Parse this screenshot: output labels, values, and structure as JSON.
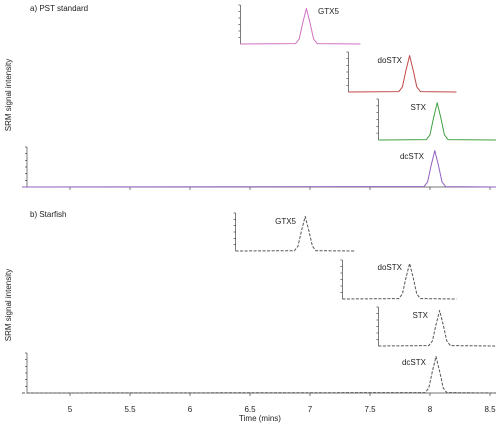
{
  "chart_data": [
    {
      "type": "line",
      "title": "a) PST standard",
      "y_label": "SRM signal intensity",
      "xlim": [
        4.6,
        8.55
      ],
      "xticks": [
        5,
        5.5,
        6,
        6.5,
        7,
        7.5,
        8,
        8.5
      ],
      "ylim": [
        0,
        1.1
      ],
      "dashed": false,
      "series": [
        {
          "name": "GTX5",
          "color": "#d070c0",
          "x": [
            6.42,
            6.88,
            6.91,
            6.94,
            6.97,
            7.0,
            7.03,
            7.06,
            7.42
          ],
          "values": [
            0,
            0.01,
            0.14,
            0.6,
            1,
            0.6,
            0.14,
            0.01,
            0
          ]
        },
        {
          "name": "doSTX",
          "color": "#c04848",
          "x": [
            7.32,
            7.74,
            7.77,
            7.8,
            7.83,
            7.86,
            7.89,
            7.92,
            8.22
          ],
          "values": [
            0,
            0.01,
            0.14,
            0.6,
            1,
            0.6,
            0.14,
            0.01,
            0
          ]
        },
        {
          "name": "STX",
          "color": "#40a040",
          "x": [
            7.57,
            7.97,
            8.0,
            8.03,
            8.06,
            8.09,
            8.12,
            8.15,
            8.55
          ],
          "values": [
            0,
            0.01,
            0.14,
            0.6,
            1,
            0.6,
            0.14,
            0.01,
            0
          ]
        },
        {
          "name": "dcSTX",
          "color": "#9060c0",
          "x": [
            4.6,
            7.95,
            7.98,
            8.01,
            8.04,
            8.07,
            8.1,
            8.13,
            8.55
          ],
          "values": [
            0,
            0.01,
            0.14,
            0.6,
            1,
            0.6,
            0.14,
            0.01,
            0
          ]
        }
      ]
    },
    {
      "type": "line",
      "title": "b) Starfish",
      "y_label": "SRM signal intensity",
      "x_label": "Time (mins)",
      "xlim": [
        4.6,
        8.55
      ],
      "xticks": [
        5,
        5.5,
        6,
        6.5,
        7,
        7.5,
        8,
        8.5
      ],
      "ylim": [
        0,
        1.1
      ],
      "dashed": true,
      "series": [
        {
          "name": "GTX5",
          "color": "#555555",
          "x": [
            6.38,
            6.87,
            6.9,
            6.93,
            6.96,
            6.99,
            7.02,
            7.05,
            7.38
          ],
          "values": [
            0,
            0.01,
            0.14,
            0.6,
            1,
            0.6,
            0.14,
            0.01,
            0
          ]
        },
        {
          "name": "doSTX",
          "color": "#555555",
          "x": [
            7.27,
            7.74,
            7.77,
            7.8,
            7.83,
            7.86,
            7.89,
            7.92,
            8.22
          ],
          "values": [
            0,
            0.01,
            0.14,
            0.6,
            1,
            0.6,
            0.14,
            0.01,
            0
          ]
        },
        {
          "name": "STX",
          "color": "#555555",
          "x": [
            7.57,
            7.99,
            8.02,
            8.05,
            8.08,
            8.11,
            8.14,
            8.17,
            8.55
          ],
          "values": [
            0,
            0.01,
            0.14,
            0.6,
            1,
            0.6,
            0.14,
            0.01,
            0
          ]
        },
        {
          "name": "dcSTX",
          "color": "#555555",
          "x": [
            4.6,
            7.96,
            7.99,
            8.02,
            8.05,
            8.08,
            8.11,
            8.14,
            8.55
          ],
          "values": [
            0,
            0.01,
            0.14,
            0.6,
            1,
            0.6,
            0.14,
            0.01,
            0
          ]
        }
      ]
    }
  ]
}
